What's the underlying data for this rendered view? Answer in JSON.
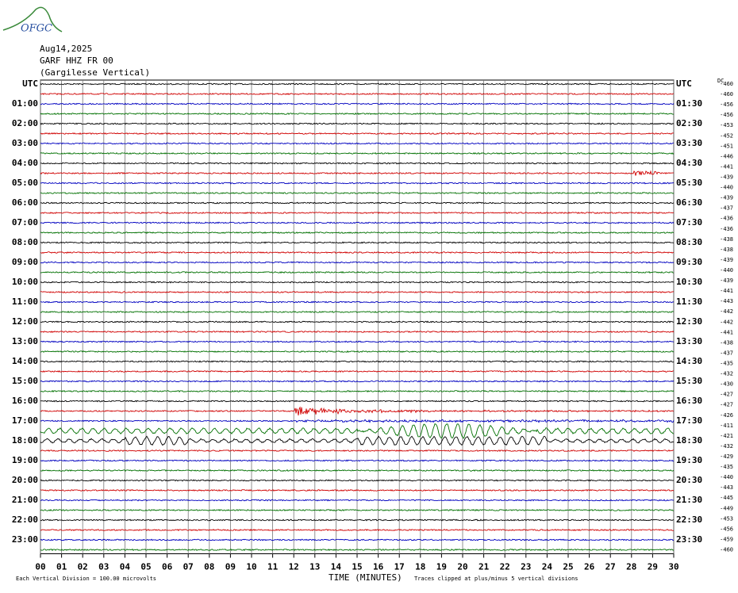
{
  "logo": "OFGC",
  "header": {
    "date": "Aug14,2025",
    "station": "GARF HHZ FR 00",
    "name": "(Gargilesse Vertical)"
  },
  "left_labels": [
    "UTC",
    "01:00",
    "02:00",
    "03:00",
    "04:00",
    "05:00",
    "06:00",
    "07:00",
    "08:00",
    "09:00",
    "10:00",
    "11:00",
    "12:00",
    "13:00",
    "14:00",
    "15:00",
    "16:00",
    "17:00",
    "18:00",
    "19:00",
    "20:00",
    "21:00",
    "22:00",
    "23:00"
  ],
  "right_labels": [
    "UTC",
    "01:30",
    "02:30",
    "03:30",
    "04:30",
    "05:30",
    "06:30",
    "07:30",
    "08:30",
    "09:30",
    "10:30",
    "11:30",
    "12:30",
    "13:30",
    "14:30",
    "15:30",
    "16:30",
    "17:30",
    "18:30",
    "19:30",
    "20:30",
    "21:30",
    "22:30",
    "23:30"
  ],
  "dc_title": "DC",
  "dc_values": [
    "-460",
    "-460",
    "-456",
    "-456",
    "-453",
    "-452",
    "-451",
    "-446",
    "-441",
    "-439",
    "-440",
    "-439",
    "-437",
    "-436",
    "-436",
    "-438",
    "-438",
    "-439",
    "-440",
    "-439",
    "-441",
    "-443",
    "-442",
    "-442",
    "-441",
    "-438",
    "-437",
    "-435",
    "-432",
    "-430",
    "-427",
    "-427",
    "-426",
    "-411",
    "-421",
    "-432",
    "-429",
    "-435",
    "-440",
    "-443",
    "-445",
    "-449",
    "-453",
    "-456",
    "-459",
    "-460"
  ],
  "x_ticks": [
    "00",
    "01",
    "02",
    "03",
    "04",
    "05",
    "06",
    "07",
    "08",
    "09",
    "10",
    "11",
    "12",
    "13",
    "14",
    "15",
    "16",
    "17",
    "18",
    "19",
    "20",
    "21",
    "22",
    "23",
    "24",
    "25",
    "26",
    "27",
    "28",
    "29",
    "30"
  ],
  "footer": {
    "scale": "Each Vertical Division =  100.00 microvolts",
    "axis_title": "TIME (MINUTES)",
    "clip": "Traces clipped at plus/minus 5 vertical divisions"
  }
}
